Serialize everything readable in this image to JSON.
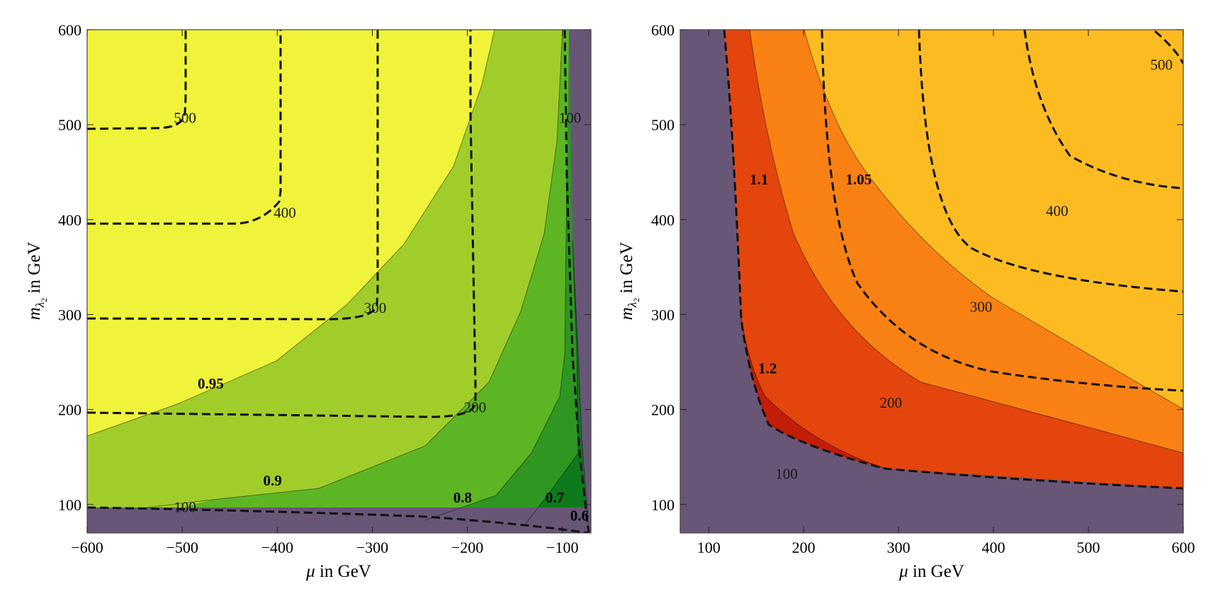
{
  "chart_data": [
    {
      "type": "contour",
      "xlabel_var": "μ",
      "xlabel_rest": " in GeV",
      "ylabel_var": "m",
      "ylabel_sub": "λ",
      "ylabel_subsub": "2",
      "ylabel_rest": " in GeV",
      "xlim": [
        -600,
        -70
      ],
      "ylim": [
        70,
        600
      ],
      "xticks": [
        -600,
        -500,
        -400,
        -300,
        -200,
        -100
      ],
      "xtick_labels": [
        "−600",
        "−500",
        "−400",
        "−300",
        "−200",
        "−100"
      ],
      "yticks": [
        100,
        200,
        300,
        400,
        500,
        600
      ],
      "ytick_labels": [
        "100",
        "200",
        "300",
        "400",
        "500",
        "600"
      ],
      "filled_region_labels": [
        {
          "text": "0.95",
          "x": -470,
          "y": 222
        },
        {
          "text": "0.9",
          "x": -405,
          "y": 120
        },
        {
          "text": "0.8",
          "x": -205,
          "y": 102
        },
        {
          "text": "0.7",
          "x": -108,
          "y": 102
        },
        {
          "text": "0.6",
          "x": -82,
          "y": 83
        }
      ],
      "dashed_contour_labels": [
        {
          "text": "500",
          "x": -497,
          "y": 502
        },
        {
          "text": "400",
          "x": -392,
          "y": 402
        },
        {
          "text": "300",
          "x": -297,
          "y": 302
        },
        {
          "text": "200",
          "x": -192,
          "y": 197
        },
        {
          "text": "100",
          "x": -92,
          "y": 502
        },
        {
          "text": "100",
          "x": -497,
          "y": 92
        }
      ],
      "colors": {
        "excluded": "#685677",
        "level_095": "#eff33a",
        "level_09": "#a1cd2b",
        "level_08": "#5db523",
        "level_07": "#2e9621",
        "level_06": "#0e7a1c"
      }
    },
    {
      "type": "contour",
      "xlabel_var": "μ",
      "xlabel_rest": " in GeV",
      "ylabel_var": "m",
      "ylabel_sub": "λ",
      "ylabel_subsub": "2",
      "ylabel_rest": " in GeV",
      "xlim": [
        70,
        600
      ],
      "ylim": [
        70,
        600
      ],
      "xticks": [
        100,
        200,
        300,
        400,
        500,
        600
      ],
      "xtick_labels": [
        "100",
        "200",
        "300",
        "400",
        "500",
        "600"
      ],
      "yticks": [
        100,
        200,
        300,
        400,
        500,
        600
      ],
      "ytick_labels": [
        "100",
        "200",
        "300",
        "400",
        "500",
        "600"
      ],
      "filled_region_labels": [
        {
          "text": "1.1",
          "x": 153,
          "y": 437
        },
        {
          "text": "1.05",
          "x": 258,
          "y": 437
        },
        {
          "text": "1.2",
          "x": 162,
          "y": 238
        }
      ],
      "dashed_contour_labels": [
        {
          "text": "500",
          "x": 577,
          "y": 558
        },
        {
          "text": "400",
          "x": 467,
          "y": 404
        },
        {
          "text": "300",
          "x": 387,
          "y": 303
        },
        {
          "text": "200",
          "x": 292,
          "y": 202
        },
        {
          "text": "100",
          "x": 182,
          "y": 127
        }
      ],
      "colors": {
        "excluded": "#685677",
        "level_105": "#fdbb22",
        "level_11": "#f98113",
        "level_12": "#e4450c",
        "level_13": "#c21d06"
      }
    }
  ]
}
